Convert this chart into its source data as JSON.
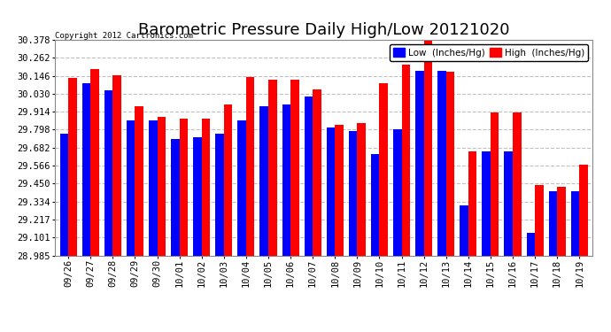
{
  "title": "Barometric Pressure Daily High/Low 20121020",
  "copyright": "Copyright 2012 Cartronics.com",
  "dates": [
    "09/26",
    "09/27",
    "09/28",
    "09/29",
    "09/30",
    "10/01",
    "10/02",
    "10/03",
    "10/04",
    "10/05",
    "10/06",
    "10/07",
    "10/08",
    "10/09",
    "10/10",
    "10/11",
    "10/12",
    "10/13",
    "10/14",
    "10/15",
    "10/16",
    "10/17",
    "10/18",
    "10/19"
  ],
  "low": [
    29.77,
    30.1,
    30.05,
    29.86,
    29.86,
    29.74,
    29.75,
    29.77,
    29.86,
    29.95,
    29.96,
    30.01,
    29.81,
    29.79,
    29.64,
    29.8,
    30.18,
    30.18,
    29.31,
    29.66,
    29.66,
    29.13,
    29.4,
    29.4
  ],
  "high": [
    30.13,
    30.19,
    30.15,
    29.95,
    29.88,
    29.87,
    29.87,
    29.96,
    30.14,
    30.12,
    30.12,
    30.06,
    29.83,
    29.84,
    30.1,
    30.22,
    30.37,
    30.17,
    29.66,
    29.91,
    29.91,
    29.44,
    29.43,
    29.57
  ],
  "ylim_min": 28.985,
  "ylim_max": 30.378,
  "yticks": [
    28.985,
    29.101,
    29.217,
    29.334,
    29.45,
    29.566,
    29.682,
    29.798,
    29.914,
    30.03,
    30.146,
    30.262,
    30.378
  ],
  "low_color": "#0000ff",
  "high_color": "#ff0000",
  "bg_color": "#ffffff",
  "grid_color": "#c0c0c0",
  "bar_width": 0.38,
  "title_fontsize": 13,
  "legend_label_low": "Low  (Inches/Hg)",
  "legend_label_high": "High  (Inches/Hg)"
}
